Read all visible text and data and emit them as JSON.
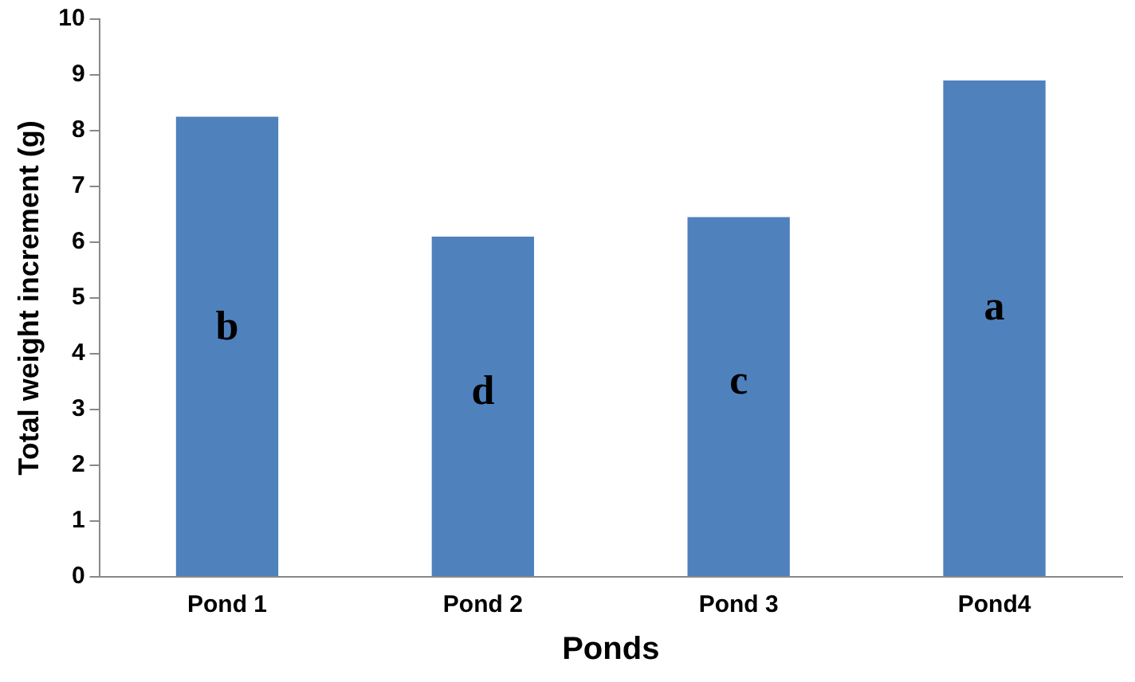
{
  "chart_data": {
    "type": "bar",
    "xlabel": "Ponds",
    "ylabel": "Total weight increment (g)",
    "categories": [
      "Pond 1",
      "Pond 2",
      "Pond 3",
      "Pond4"
    ],
    "values": [
      8.25,
      6.1,
      6.45,
      8.9
    ],
    "color": "#4f81bd",
    "ylim": [
      0,
      10
    ],
    "yticks": [
      0,
      1,
      2,
      3,
      4,
      5,
      6,
      7,
      8,
      9,
      10
    ],
    "grid": false,
    "legend": false,
    "annotations": [
      "b",
      "d",
      "c",
      "a"
    ]
  }
}
